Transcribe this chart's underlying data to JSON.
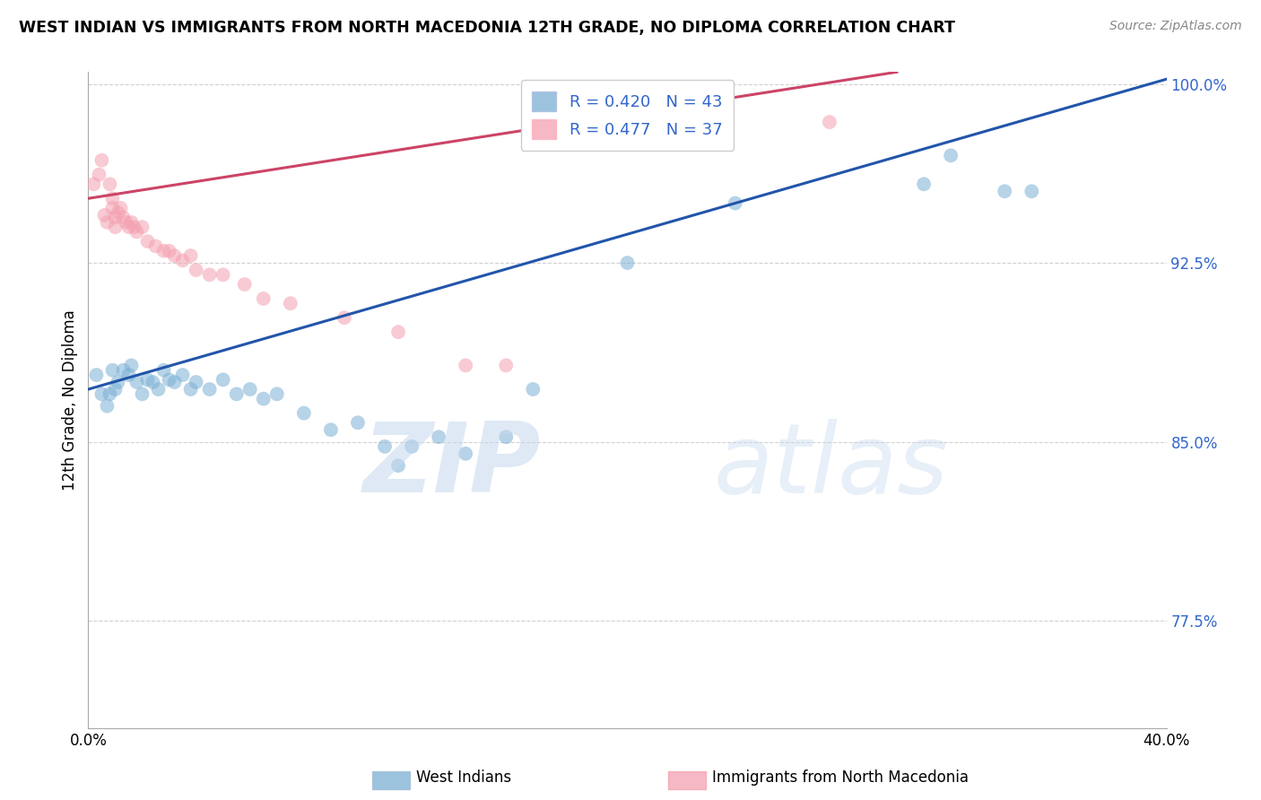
{
  "title": "WEST INDIAN VS IMMIGRANTS FROM NORTH MACEDONIA 12TH GRADE, NO DIPLOMA CORRELATION CHART",
  "source": "Source: ZipAtlas.com",
  "ylabel": "12th Grade, No Diploma",
  "x_min": 0.0,
  "x_max": 0.4,
  "y_min": 0.73,
  "y_max": 1.005,
  "x_ticks": [
    0.0,
    0.05,
    0.1,
    0.15,
    0.2,
    0.25,
    0.3,
    0.35,
    0.4
  ],
  "y_ticks": [
    0.775,
    0.85,
    0.925,
    1.0
  ],
  "y_tick_labels": [
    "77.5%",
    "85.0%",
    "92.5%",
    "100.0%"
  ],
  "R_blue": 0.42,
  "N_blue": 43,
  "R_pink": 0.477,
  "N_pink": 37,
  "blue_color": "#7BAFD4",
  "pink_color": "#F4A0B0",
  "trendline_blue": "#2255AA",
  "trendline_pink": "#CC4466",
  "legend_label_blue": "West Indians",
  "legend_label_pink": "Immigrants from North Macedonia",
  "blue_scatter_x": [
    0.003,
    0.005,
    0.007,
    0.008,
    0.009,
    0.01,
    0.011,
    0.013,
    0.015,
    0.016,
    0.018,
    0.02,
    0.022,
    0.024,
    0.026,
    0.028,
    0.03,
    0.032,
    0.035,
    0.038,
    0.04,
    0.045,
    0.05,
    0.055,
    0.06,
    0.065,
    0.07,
    0.08,
    0.09,
    0.1,
    0.11,
    0.115,
    0.12,
    0.13,
    0.14,
    0.155,
    0.165,
    0.2,
    0.24,
    0.31,
    0.32,
    0.34,
    0.35
  ],
  "blue_scatter_y": [
    0.878,
    0.87,
    0.865,
    0.87,
    0.88,
    0.872,
    0.875,
    0.88,
    0.878,
    0.882,
    0.875,
    0.87,
    0.876,
    0.875,
    0.872,
    0.88,
    0.876,
    0.875,
    0.878,
    0.872,
    0.875,
    0.872,
    0.876,
    0.87,
    0.872,
    0.868,
    0.87,
    0.862,
    0.855,
    0.858,
    0.848,
    0.84,
    0.848,
    0.852,
    0.845,
    0.852,
    0.872,
    0.925,
    0.95,
    0.958,
    0.97,
    0.955,
    0.955
  ],
  "pink_scatter_x": [
    0.002,
    0.004,
    0.005,
    0.006,
    0.007,
    0.008,
    0.009,
    0.009,
    0.01,
    0.01,
    0.011,
    0.012,
    0.013,
    0.014,
    0.015,
    0.016,
    0.017,
    0.018,
    0.02,
    0.022,
    0.025,
    0.028,
    0.03,
    0.032,
    0.035,
    0.038,
    0.04,
    0.045,
    0.05,
    0.058,
    0.065,
    0.075,
    0.095,
    0.115,
    0.14,
    0.155,
    0.275
  ],
  "pink_scatter_y": [
    0.958,
    0.962,
    0.968,
    0.945,
    0.942,
    0.958,
    0.952,
    0.948,
    0.944,
    0.94,
    0.946,
    0.948,
    0.944,
    0.942,
    0.94,
    0.942,
    0.94,
    0.938,
    0.94,
    0.934,
    0.932,
    0.93,
    0.93,
    0.928,
    0.926,
    0.928,
    0.922,
    0.92,
    0.92,
    0.916,
    0.91,
    0.908,
    0.902,
    0.896,
    0.882,
    0.882,
    0.984
  ],
  "trendline_blue_x0": 0.0,
  "trendline_blue_x1": 0.4,
  "trendline_blue_y0": 0.872,
  "trendline_blue_y1": 1.002,
  "trendline_pink_x0": 0.0,
  "trendline_pink_x1": 0.3,
  "trendline_pink_y0": 0.952,
  "trendline_pink_y1": 1.005
}
